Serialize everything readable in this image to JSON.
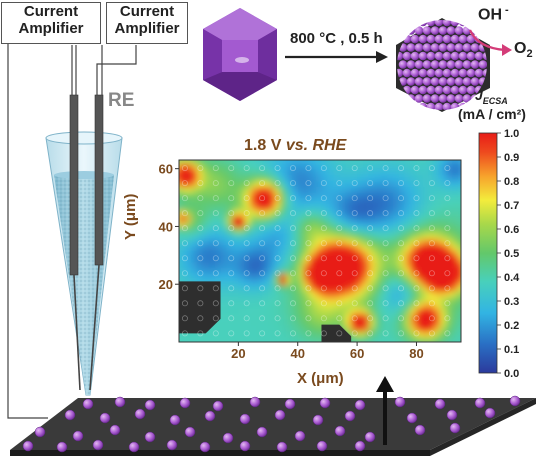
{
  "amplifiers": [
    {
      "line1": "Current",
      "line2": "Amplifier"
    },
    {
      "line1": "Current",
      "line2": "Amplifier"
    }
  ],
  "reference_electrode_label": "RE",
  "reaction": {
    "condition": "800 °C , 0.5 h",
    "reactant": "OH",
    "reactant_charge": "-",
    "product": "O",
    "product_subscript": "2"
  },
  "map": {
    "title_value": "1.8 V",
    "title_italic": "vs. RHE",
    "xlabel": "X (μm)",
    "ylabel": "Y (μm)",
    "x_ticks": [
      "20",
      "40",
      "60",
      "80"
    ],
    "y_ticks": [
      "20",
      "40",
      "60"
    ]
  },
  "colorbar": {
    "title_symbol": "J",
    "title_subscript": "ECSA",
    "units": "(mA / cm²)",
    "ticks": [
      "1.0",
      "0.9",
      "0.8",
      "0.7",
      "0.6",
      "0.5",
      "0.4",
      "0.3",
      "0.2",
      "0.1",
      "0.0"
    ]
  },
  "colors": {
    "crystal": "#9a45c4",
    "particle": "#b46ad6",
    "substrate": "#3a3a3a",
    "title_brown": "#7a4a1e",
    "arrow_pink": "#d43c78"
  }
}
